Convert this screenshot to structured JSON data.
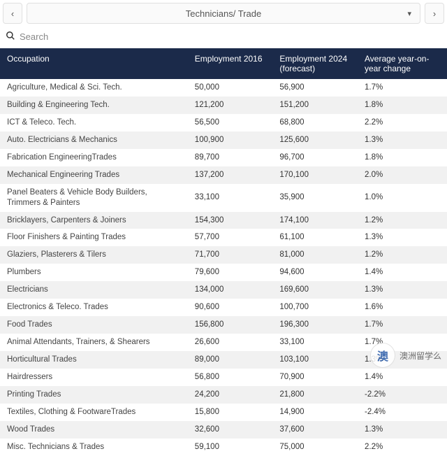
{
  "header": {
    "dropdown_label": "Technicians/ Trade"
  },
  "search": {
    "placeholder": "Search"
  },
  "table": {
    "type": "table",
    "header_bg": "#1b2a4a",
    "header_color": "#ffffff",
    "row_odd_bg": "#ffffff",
    "row_even_bg": "#f1f1f1",
    "columns": [
      "Occupation",
      "Employment 2016",
      "Employment 2024 (forecast)",
      "Average year-on- year change"
    ],
    "rows": [
      [
        "Agriculture, Medical & Sci. Tech.",
        "50,000",
        "56,900",
        "1.7%"
      ],
      [
        "Building & Engineering Tech.",
        "121,200",
        "151,200",
        "1.8%"
      ],
      [
        "ICT & Teleco. Tech.",
        "56,500",
        "68,800",
        "2.2%"
      ],
      [
        "Auto. Electricians & Mechanics",
        "100,900",
        "125,600",
        "1.3%"
      ],
      [
        "Fabrication EngineeringTrades",
        "89,700",
        "96,700",
        "1.8%"
      ],
      [
        "Mechanical Engineering Trades",
        "137,200",
        "170,100",
        "2.0%"
      ],
      [
        "Panel Beaters & Vehicle Body Builders, Trimmers & Painters",
        "33,100",
        "35,900",
        "1.0%"
      ],
      [
        "Bricklayers, Carpenters & Joiners",
        "154,300",
        "174,100",
        "1.2%"
      ],
      [
        "Floor Finishers & Painting Trades",
        "57,700",
        "61,100",
        "1.3%"
      ],
      [
        "Glaziers, Plasterers & Tilers",
        "71,700",
        "81,000",
        "1.2%"
      ],
      [
        "Plumbers",
        "79,600",
        "94,600",
        "1.4%"
      ],
      [
        "Electricians",
        "134,000",
        "169,600",
        "1.3%"
      ],
      [
        "Electronics & Teleco. Trades",
        "90,600",
        "100,700",
        "1.6%"
      ],
      [
        "Food Trades",
        "156,800",
        "196,300",
        "1.7%"
      ],
      [
        "Animal Attendants, Trainers, & Shearers",
        "26,600",
        "33,100",
        "1.7%"
      ],
      [
        "Horticultural Trades",
        "89,000",
        "103,100",
        "1.3%"
      ],
      [
        "Hairdressers",
        "56,800",
        "70,900",
        "1.4%"
      ],
      [
        "Printing Trades",
        "24,200",
        "21,800",
        "-2.2%"
      ],
      [
        "Textiles, Clothing & FootwareTrades",
        "15,800",
        "14,900",
        "-2.4%"
      ],
      [
        "Wood Trades",
        "32,600",
        "37,600",
        "1.3%"
      ],
      [
        "Misc. Technicians & Trades",
        "59,100",
        "75,000",
        "2.2%"
      ]
    ]
  },
  "watermark": {
    "text": "澳洲留学么"
  }
}
